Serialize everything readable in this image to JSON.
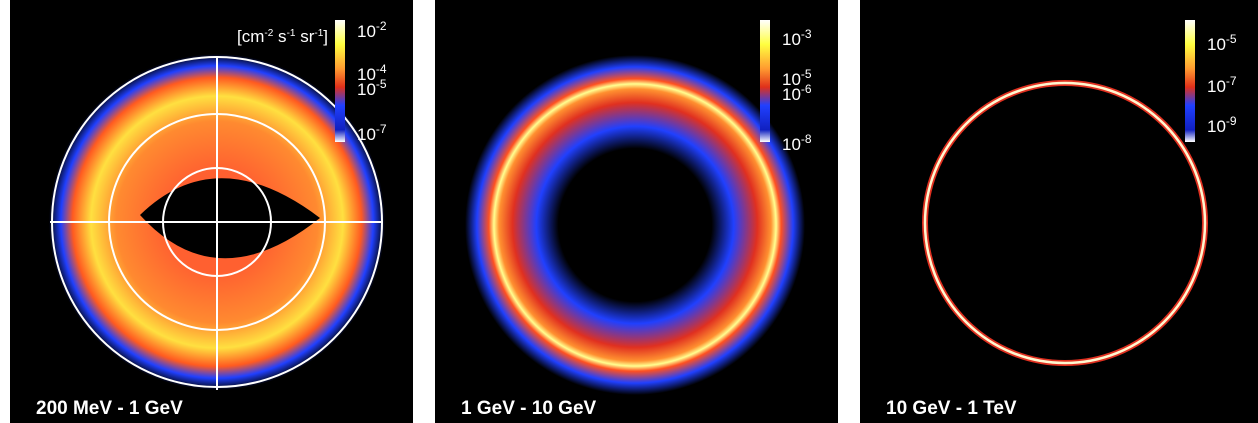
{
  "panels": [
    {
      "label": "200 MeV - 1 GeV",
      "unit": [
        {
          "t": "[cm",
          "sup": "-2"
        },
        {
          "t": " s",
          "sup": "-1"
        },
        {
          "t": " sr",
          "sup": "-1"
        },
        {
          "t": "]"
        }
      ],
      "scale": [
        {
          "base": "10",
          "exp": "-2"
        },
        {
          "base": "10",
          "exp": "-4"
        },
        {
          "base": "10",
          "exp": "-5"
        },
        {
          "base": "10",
          "exp": "-7"
        }
      ]
    },
    {
      "label": "1 GeV - 10 GeV",
      "scale": [
        {
          "base": "10",
          "exp": "-3"
        },
        {
          "base": "10",
          "exp": "-5"
        },
        {
          "base": "10",
          "exp": "-6"
        },
        {
          "base": "10",
          "exp": "-8"
        }
      ]
    },
    {
      "label": "10 GeV - 1 TeV",
      "scale": [
        {
          "base": "10",
          "exp": "-5"
        },
        {
          "base": "10",
          "exp": "-7"
        },
        {
          "base": "10",
          "exp": "-9"
        }
      ]
    }
  ]
}
